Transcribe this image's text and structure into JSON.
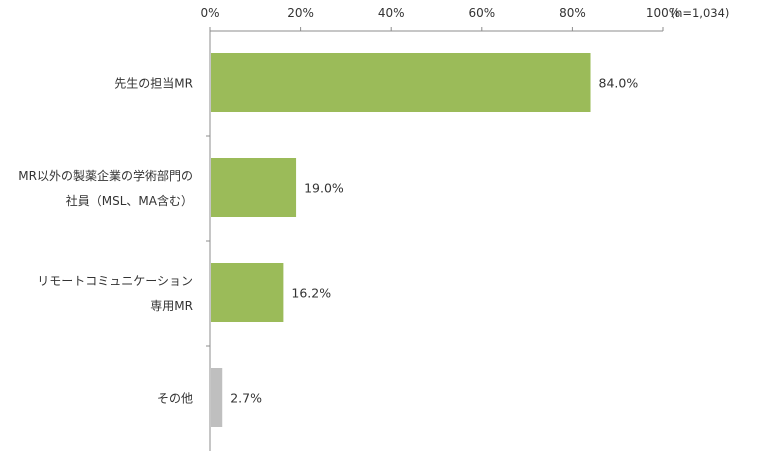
{
  "note": "(n=1,034)",
  "colors": {
    "primary_bar": "#9bbb59",
    "other_bar": "#bfbfbf",
    "axis": "#8c8c8c",
    "text": "#333333"
  },
  "chart_data": {
    "type": "bar",
    "orientation": "horizontal",
    "title": "",
    "xlabel": "",
    "ylabel": "",
    "xlim": [
      0,
      100
    ],
    "x_ticks": [
      "0%",
      "20%",
      "40%",
      "60%",
      "80%",
      "100%"
    ],
    "x_tick_values": [
      0,
      20,
      40,
      60,
      80,
      100
    ],
    "grid": false,
    "categories": [
      [
        "先生の担当MR"
      ],
      [
        "MR以外の製薬企業の学術部門の",
        "社員（MSL、MA含む）"
      ],
      [
        "リモートコミュニケーション",
        "専用MR"
      ],
      [
        "その他"
      ]
    ],
    "values": [
      84.0,
      19.0,
      16.2,
      2.7
    ],
    "value_labels": [
      "84.0%",
      "19.0%",
      "16.2%",
      "2.7%"
    ],
    "bar_colors": [
      "#9bbb59",
      "#9bbb59",
      "#9bbb59",
      "#bfbfbf"
    ]
  }
}
